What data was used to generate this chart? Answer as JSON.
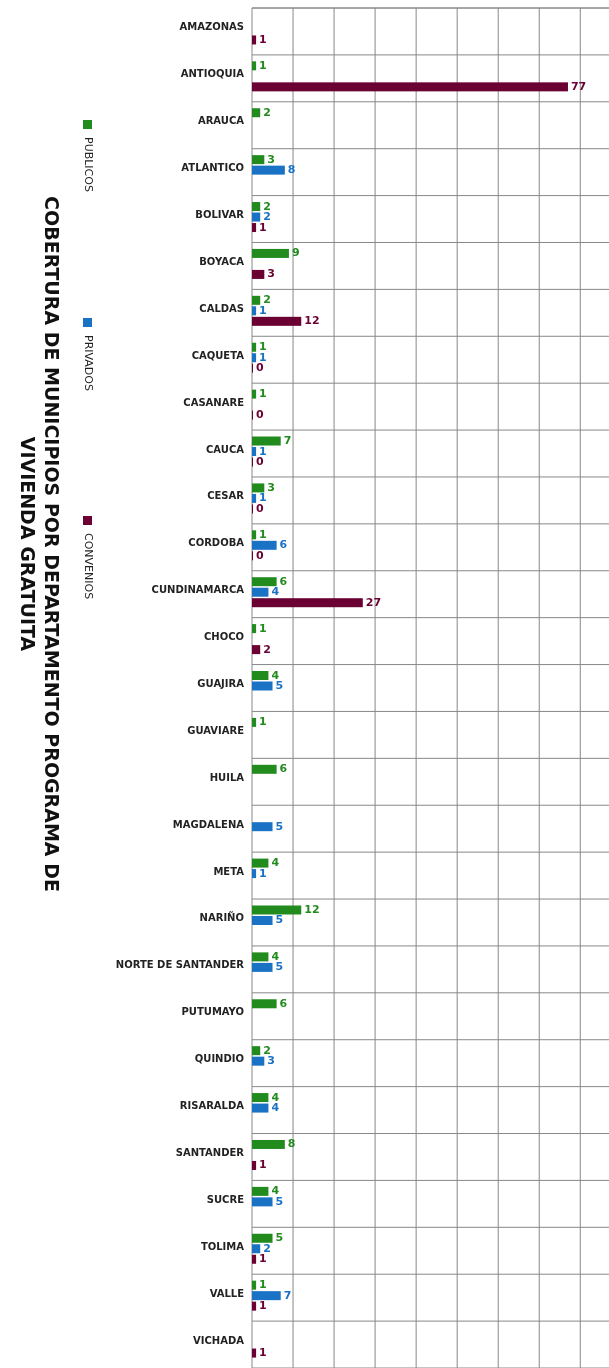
{
  "chart_data": {
    "type": "bar",
    "orientation": "horizontal",
    "title": "COBERTURA DE MUNICIPIOS  POR DEPARTAMENTO PROGRAMA DE VIVIENDA GRATUITA",
    "categories": [
      "AMAZONAS",
      "ANTIOQUIA",
      "ARAUCA",
      "ATLANTICO",
      "BOLIVAR",
      "BOYACA",
      "CALDAS",
      "CAQUETA",
      "CASANARE",
      "CAUCA",
      "CESAR",
      "CORDOBA",
      "CUNDINAMARCA",
      "CHOCO",
      "GUAJIRA",
      "GUAVIARE",
      "HUILA",
      "MAGDALENA",
      "META",
      "NARIÑO",
      "NORTE DE SANTANDER",
      "PUTUMAYO",
      "QUINDIO",
      "RISARALDA",
      "SANTANDER",
      "SUCRE",
      "TOLIMA",
      "VALLE",
      "VICHADA"
    ],
    "series": [
      {
        "name": "PUBLICOS",
        "color": "#228b1e",
        "values": [
          null,
          1,
          2,
          3,
          2,
          9,
          2,
          1,
          1,
          7,
          3,
          1,
          6,
          1,
          4,
          1,
          6,
          null,
          4,
          12,
          4,
          6,
          2,
          4,
          8,
          4,
          5,
          1,
          null
        ]
      },
      {
        "name": "PRIVADOS",
        "color": "#1a72c4",
        "values": [
          null,
          null,
          null,
          8,
          2,
          null,
          1,
          1,
          null,
          1,
          1,
          6,
          4,
          null,
          5,
          null,
          null,
          5,
          1,
          5,
          5,
          null,
          3,
          4,
          null,
          5,
          2,
          7,
          null
        ]
      },
      {
        "name": "CONVENIOS",
        "color": "#6b0033",
        "values": [
          1,
          77,
          null,
          null,
          1,
          3,
          12,
          0,
          0,
          0,
          0,
          0,
          27,
          2,
          null,
          null,
          null,
          null,
          null,
          null,
          null,
          null,
          null,
          null,
          1,
          null,
          1,
          1,
          1
        ]
      }
    ],
    "xlim": [
      0,
      87
    ],
    "xticks": [
      {
        "value": 0,
        "label": null
      },
      {
        "value": 10,
        "label": null
      },
      {
        "value": 20,
        "label": null
      },
      {
        "value": 30,
        "label": null
      },
      {
        "value": 40,
        "label": null
      },
      {
        "value": 50,
        "label": null
      },
      {
        "value": 60,
        "label": null
      },
      {
        "value": 70,
        "label": null
      },
      {
        "value": 80,
        "label": null
      }
    ],
    "tick_labels": "y",
    "grid": true,
    "legend": "left",
    "data_labels": true
  }
}
